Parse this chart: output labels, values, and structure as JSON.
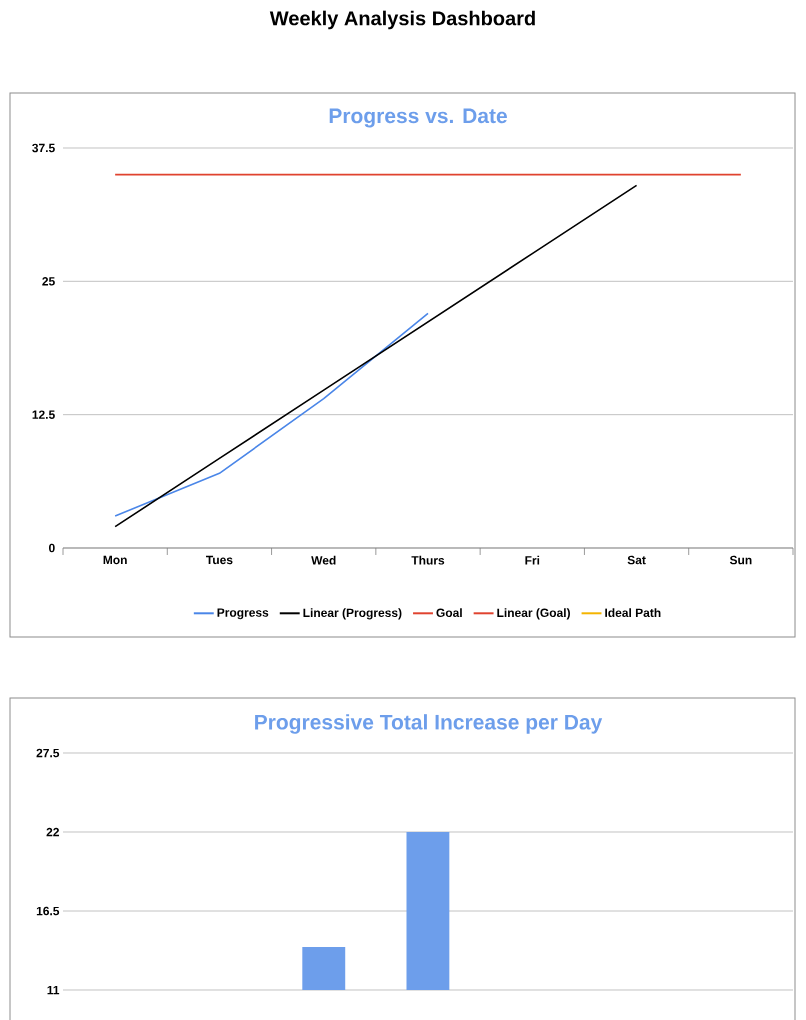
{
  "chart_data": [
    {
      "type": "line",
      "title": "Weekly Analysis Dashboard",
      "subtitle": "Progress vs. Date",
      "categories": [
        "Mon",
        "Tues",
        "Wed",
        "Thurs",
        "Fri",
        "Sat",
        "Sun"
      ],
      "series": [
        {
          "name": "Progress",
          "color": "#4a86e8",
          "values": [
            3,
            7,
            14,
            22,
            null,
            null,
            null
          ]
        },
        {
          "name": "Linear (Progress)",
          "color": "#000000",
          "values": [
            2,
            8.4,
            14.8,
            21.2,
            27.6,
            34,
            null
          ]
        },
        {
          "name": "Goal",
          "color": "#e0432f",
          "values": [
            35,
            35,
            35,
            35,
            35,
            35,
            35
          ]
        },
        {
          "name": "Linear (Goal)",
          "color": "#e0432f",
          "values": [
            null,
            null,
            null,
            null,
            null,
            null,
            null
          ]
        },
        {
          "name": "Ideal Path",
          "color": "#f4b400",
          "values": [
            null,
            null,
            null,
            null,
            null,
            null,
            null
          ]
        }
      ],
      "ylim": [
        0,
        37.5
      ],
      "yticks": [
        0,
        12.5,
        25,
        37.5
      ],
      "grid": "y",
      "legend": "bottom"
    },
    {
      "type": "bar",
      "title": "Progressive Total Increase per Day",
      "categories": [
        null,
        null,
        null,
        null,
        null,
        null,
        null
      ],
      "values": [
        null,
        null,
        14,
        22,
        null,
        null,
        null
      ],
      "color": "#6d9eeb",
      "ylim": [
        11,
        27.5
      ],
      "yticks": [
        11,
        16.5,
        22,
        27.5
      ],
      "grid": "y",
      "tick_labels": "y"
    }
  ]
}
